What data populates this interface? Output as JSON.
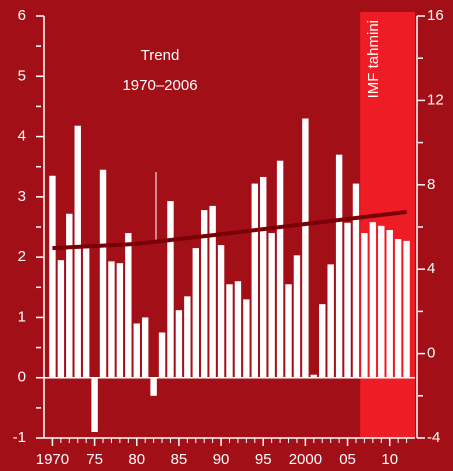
{
  "chart_data": {
    "type": "bar",
    "x": [
      1970,
      1971,
      1972,
      1973,
      1974,
      1975,
      1976,
      1977,
      1978,
      1979,
      1980,
      1981,
      1982,
      1983,
      1984,
      1985,
      1986,
      1987,
      1988,
      1989,
      1990,
      1991,
      1992,
      1993,
      1994,
      1995,
      1996,
      1997,
      1998,
      1999,
      2000,
      2001,
      2002,
      2003,
      2004,
      2005,
      2006,
      2007,
      2008,
      2009,
      2010,
      2011,
      2012
    ],
    "values": [
      3.35,
      1.95,
      2.72,
      4.18,
      2.15,
      -0.9,
      3.45,
      1.93,
      1.9,
      2.4,
      0.9,
      1.0,
      -0.3,
      0.75,
      2.93,
      1.12,
      1.35,
      2.15,
      2.78,
      2.85,
      2.2,
      1.55,
      1.6,
      1.3,
      3.22,
      3.33,
      2.4,
      3.6,
      1.55,
      2.03,
      4.3,
      0.05,
      1.22,
      1.88,
      3.7,
      2.57,
      3.22,
      2.4,
      2.58,
      2.52,
      2.45,
      2.3,
      2.27
    ],
    "color": "#ffffff",
    "trend": {
      "x": [
        1970,
        1980,
        1990,
        2000,
        2012
      ],
      "values": [
        2.15,
        2.22,
        2.38,
        2.55,
        2.75
      ],
      "color": "#7a0008"
    },
    "annotations": [
      "Trend",
      "1970–2006",
      "IMF tahmini"
    ],
    "forecast_from": 2007,
    "forecast_color": "#ee1c25",
    "xlim": [
      1969,
      2013
    ],
    "xticks": [
      {
        "value": 1970,
        "label": "1970"
      },
      {
        "value": 1975,
        "label": "75"
      },
      {
        "value": 1980,
        "label": "80"
      },
      {
        "value": 1985,
        "label": "85"
      },
      {
        "value": 1990,
        "label": "90"
      },
      {
        "value": 1995,
        "label": "95"
      },
      {
        "value": 2000,
        "label": "2000"
      },
      {
        "value": 2005,
        "label": "05"
      },
      {
        "value": 2010,
        "label": "10"
      }
    ],
    "ylim": [
      -1,
      6
    ],
    "yticks": [
      -1,
      0,
      1,
      2,
      3,
      4,
      5,
      6
    ],
    "y2lim": [
      -4,
      16
    ],
    "y2ticks": [
      -4,
      0,
      4,
      8,
      12,
      16
    ]
  }
}
